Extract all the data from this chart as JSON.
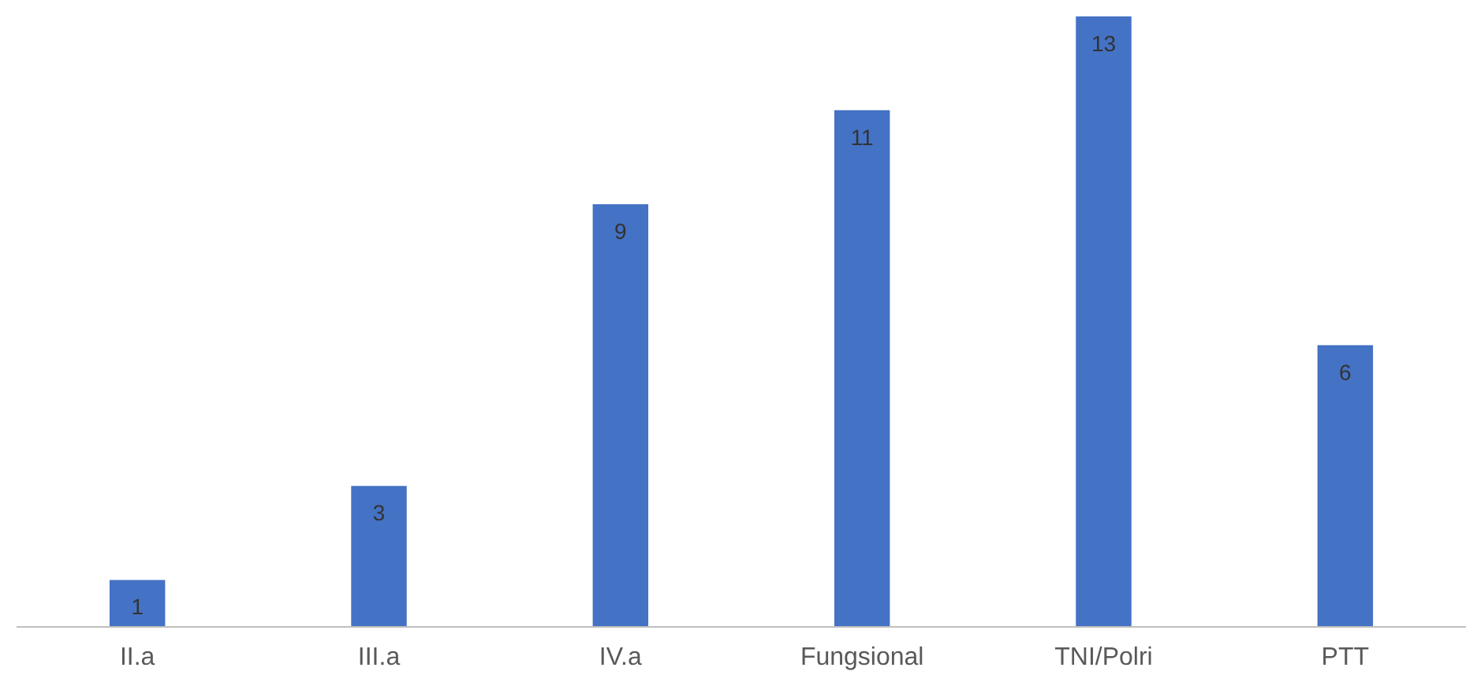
{
  "chart_data": {
    "type": "bar",
    "categories": [
      "II.a",
      "III.a",
      "IV.a",
      "Fungsional",
      "TNI/Polri",
      "PTT"
    ],
    "values": [
      1,
      3,
      9,
      11,
      13,
      6
    ],
    "color": "#4472c4",
    "data_labels": true
  }
}
